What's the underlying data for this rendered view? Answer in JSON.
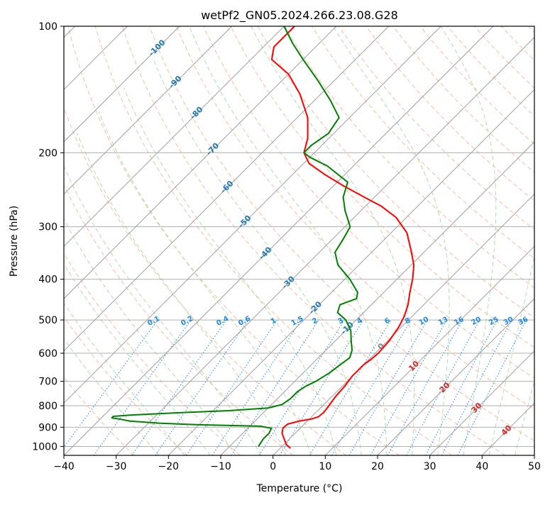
{
  "chart_data": {
    "type": "skew-t log-p",
    "title": "wetPf2_GN05.2024.266.23.08.G28",
    "xlabel": "Temperature (°C)",
    "ylabel": "Pressure (hPa)",
    "xlim": [
      -40,
      50
    ],
    "ylim_hpa": [
      1050,
      100
    ],
    "y_log_scale": true,
    "grid": true,
    "x_ticks": [
      "−40",
      "−30",
      "−20",
      "−10",
      "0",
      "10",
      "20",
      "30",
      "40",
      "50"
    ],
    "x_tick_values": [
      -40,
      -30,
      -20,
      -10,
      0,
      10,
      20,
      30,
      40,
      50
    ],
    "y_ticks": [
      "1000",
      "900",
      "800",
      "700",
      "600",
      "500",
      "400",
      "300",
      "200",
      "100"
    ],
    "y_tick_values": [
      1000,
      900,
      800,
      700,
      600,
      500,
      400,
      300,
      200,
      100
    ],
    "isotherm_labels": [
      "-100",
      "-90",
      "-80",
      "-70",
      "-60",
      "-50",
      "-40",
      "-30",
      "-20",
      "-10",
      "0",
      "10",
      "20",
      "30",
      "40"
    ],
    "isotherm_label_values": [
      -100,
      -90,
      -80,
      -70,
      -60,
      -50,
      -40,
      -30,
      -20,
      -10,
      0,
      10,
      20,
      30,
      40
    ],
    "mixing_ratio_labels": [
      "0.1",
      "0.2",
      "0.4",
      "0.6",
      "1",
      "1.5",
      "2",
      "3",
      "4",
      "6",
      "8",
      "10",
      "13",
      "16",
      "20",
      "25",
      "30",
      "36"
    ],
    "colors": {
      "temperature": "#ff0000",
      "dewpoint": "#008000",
      "isotherm": "#a0a0a0",
      "dry_adiabat": "#f4a582",
      "moist_adiabat": "#a6d8a6",
      "mixing_ratio": "#1e88e5",
      "isotherm_label_cold": "#1f77b4",
      "isotherm_label_zero": "#808080",
      "isotherm_label_warm": "#d62728",
      "mixing_ratio_label": "#1e88e5"
    },
    "series": [
      {
        "name": "temperature",
        "points": [
          {
            "p": 1010,
            "t": 2
          },
          {
            "p": 990,
            "t": 0.5
          },
          {
            "p": 960,
            "t": -1
          },
          {
            "p": 930,
            "t": -2.5
          },
          {
            "p": 905,
            "t": -3.3
          },
          {
            "p": 885,
            "t": -3.2
          },
          {
            "p": 870,
            "t": -1.5
          },
          {
            "p": 860,
            "t": 0.5
          },
          {
            "p": 850,
            "t": 1.3
          },
          {
            "p": 830,
            "t": 1.5
          },
          {
            "p": 800,
            "t": 1.2
          },
          {
            "p": 760,
            "t": 0.7
          },
          {
            "p": 720,
            "t": 0.5
          },
          {
            "p": 680,
            "t": 0
          },
          {
            "p": 640,
            "t": 0
          },
          {
            "p": 620,
            "t": 0.4
          },
          {
            "p": 600,
            "t": 0.6
          },
          {
            "p": 560,
            "t": 0.3
          },
          {
            "p": 520,
            "t": -0.5
          },
          {
            "p": 490,
            "t": -1.5
          },
          {
            "p": 460,
            "t": -3
          },
          {
            "p": 430,
            "t": -5
          },
          {
            "p": 400,
            "t": -7
          },
          {
            "p": 370,
            "t": -9.5
          },
          {
            "p": 340,
            "t": -13
          },
          {
            "p": 310,
            "t": -17
          },
          {
            "p": 285,
            "t": -22
          },
          {
            "p": 268,
            "t": -27
          },
          {
            "p": 255,
            "t": -32
          },
          {
            "p": 240,
            "t": -38
          },
          {
            "p": 225,
            "t": -44
          },
          {
            "p": 212,
            "t": -49
          },
          {
            "p": 200,
            "t": -52
          },
          {
            "p": 185,
            "t": -54
          },
          {
            "p": 165,
            "t": -58
          },
          {
            "p": 145,
            "t": -64
          },
          {
            "p": 130,
            "t": -70
          },
          {
            "p": 120,
            "t": -76
          },
          {
            "p": 112,
            "t": -78
          },
          {
            "p": 105,
            "t": -78
          },
          {
            "p": 100,
            "t": -78
          }
        ]
      },
      {
        "name": "dewpoint",
        "points": [
          {
            "p": 1000,
            "t": -4.5
          },
          {
            "p": 960,
            "t": -5
          },
          {
            "p": 930,
            "t": -5
          },
          {
            "p": 905,
            "t": -5.5
          },
          {
            "p": 895,
            "t": -8
          },
          {
            "p": 888,
            "t": -20
          },
          {
            "p": 880,
            "t": -28
          },
          {
            "p": 870,
            "t": -34
          },
          {
            "p": 862,
            "t": -36
          },
          {
            "p": 855,
            "t": -38
          },
          {
            "p": 848,
            "t": -38
          },
          {
            "p": 842,
            "t": -35
          },
          {
            "p": 830,
            "t": -25
          },
          {
            "p": 822,
            "t": -17
          },
          {
            "p": 810,
            "t": -10
          },
          {
            "p": 795,
            "t": -8
          },
          {
            "p": 770,
            "t": -7.5
          },
          {
            "p": 740,
            "t": -7.5
          },
          {
            "p": 720,
            "t": -7
          },
          {
            "p": 700,
            "t": -6
          },
          {
            "p": 670,
            "t": -5
          },
          {
            "p": 640,
            "t": -4.5
          },
          {
            "p": 615,
            "t": -4
          },
          {
            "p": 590,
            "t": -5
          },
          {
            "p": 560,
            "t": -7
          },
          {
            "p": 530,
            "t": -9
          },
          {
            "p": 500,
            "t": -12
          },
          {
            "p": 480,
            "t": -15
          },
          {
            "p": 460,
            "t": -16
          },
          {
            "p": 445,
            "t": -14
          },
          {
            "p": 430,
            "t": -15
          },
          {
            "p": 400,
            "t": -19
          },
          {
            "p": 370,
            "t": -24
          },
          {
            "p": 345,
            "t": -27
          },
          {
            "p": 320,
            "t": -28
          },
          {
            "p": 300,
            "t": -29
          },
          {
            "p": 275,
            "t": -33
          },
          {
            "p": 255,
            "t": -36
          },
          {
            "p": 235,
            "t": -38
          },
          {
            "p": 215,
            "t": -45
          },
          {
            "p": 205,
            "t": -50
          },
          {
            "p": 200,
            "t": -52
          },
          {
            "p": 192,
            "t": -52
          },
          {
            "p": 180,
            "t": -51
          },
          {
            "p": 165,
            "t": -52
          },
          {
            "p": 150,
            "t": -57
          },
          {
            "p": 135,
            "t": -63
          },
          {
            "p": 120,
            "t": -70
          },
          {
            "p": 110,
            "t": -75
          },
          {
            "p": 100,
            "t": -80
          }
        ]
      }
    ]
  }
}
